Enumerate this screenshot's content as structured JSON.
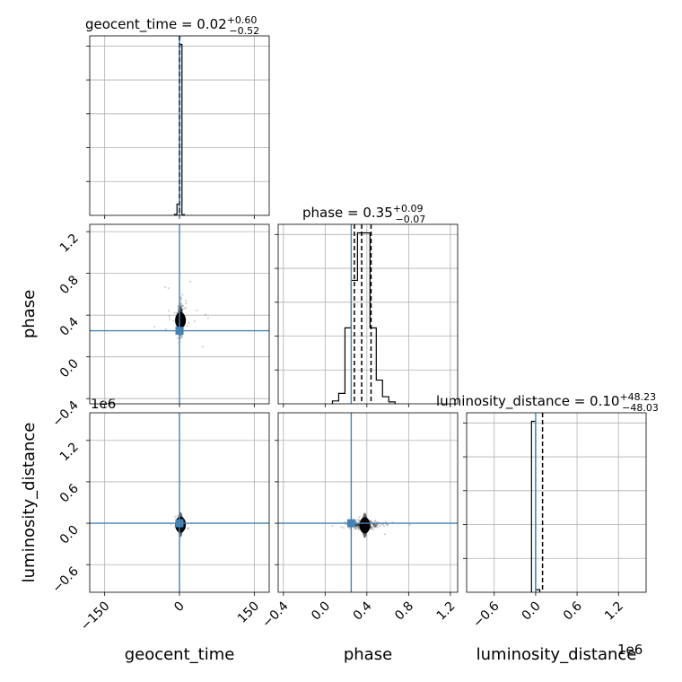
{
  "chart_data": {
    "type": "corner",
    "parameters": [
      "geocent_time",
      "phase",
      "luminosity_distance"
    ],
    "truths": {
      "geocent_time": 0,
      "phase": 0.25,
      "luminosity_distance": 0
    },
    "titles": {
      "geocent_time": {
        "prefix": "geocent_time = 0.02",
        "plus": "+0.60",
        "minus": "−0.52"
      },
      "phase": {
        "prefix": "phase = 0.35",
        "plus": "+0.09",
        "minus": "−0.07"
      },
      "luminosity_distance": {
        "prefix": "luminosity_distance = 0.10",
        "plus": "+48.23",
        "minus": "−48.03"
      }
    },
    "quantiles": {
      "geocent_time": [
        -0.5,
        0.02,
        0.62
      ],
      "phase": [
        0.28,
        0.35,
        0.44
      ],
      "luminosity_distance": [
        -48,
        0.1,
        48
      ]
    },
    "ranges": {
      "geocent_time": [
        -180,
        180
      ],
      "phase": [
        -0.45,
        1.27
      ],
      "luminosity_distance": [
        -1.0,
        1.6
      ]
    },
    "ticks": {
      "geocent_time": {
        "values": [
          -150,
          0,
          150
        ],
        "labels": [
          "−150",
          "0",
          "150"
        ]
      },
      "phase": {
        "values": [
          -0.4,
          0.0,
          0.4,
          0.8,
          1.2
        ],
        "labels": [
          "−0.4",
          "0.0",
          "0.4",
          "0.8",
          "1.2"
        ]
      },
      "luminosity_distance": {
        "values": [
          -0.6,
          0.0,
          0.6,
          1.2
        ],
        "labels": [
          "−0.6",
          "0.0",
          "0.6",
          "1.2"
        ]
      }
    },
    "yticks_ld": {
      "values": [
        -0.6,
        0.0,
        0.6,
        1.2
      ],
      "labels": [
        "−0.6",
        "0.0",
        "0.6",
        "1.2"
      ]
    },
    "offset_text": "1e6",
    "histograms": {
      "geocent_time": {
        "edges": [
          -10,
          -5,
          0,
          5,
          10
        ],
        "counts": [
          0.03,
          0.35,
          5.3,
          0.02
        ]
      },
      "phase": {
        "edges": [
          0.07,
          0.13,
          0.19,
          0.25,
          0.31,
          0.37,
          0.43,
          0.49,
          0.55,
          0.61,
          0.67
        ],
        "counts": [
          0.06,
          0.22,
          1.6,
          2.6,
          3.6,
          3.6,
          1.6,
          0.5,
          0.15,
          0.04
        ]
      },
      "luminosity_distance": {
        "edges": [
          -0.06,
          0.0,
          0.06
        ],
        "counts": [
          4.6,
          0.07
        ]
      }
    },
    "grid": true,
    "truth_color": "#4682b4"
  }
}
